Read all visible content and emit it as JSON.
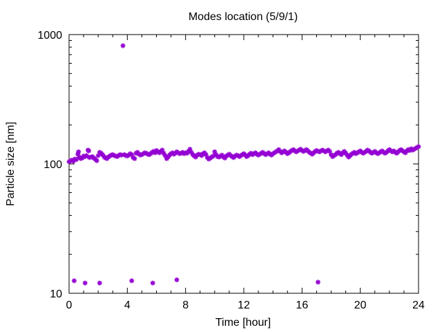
{
  "chart_data": {
    "type": "scatter",
    "title": "Modes location (5/9/1)",
    "xlabel": "Time [hour]",
    "ylabel": "Particle size [nm]",
    "xlim": [
      0,
      24
    ],
    "ylim": [
      10,
      1000
    ],
    "y_scale": "log",
    "x_ticks": [
      0,
      4,
      8,
      12,
      16,
      20,
      24
    ],
    "x_tick_labels": [
      "0",
      "4",
      "8",
      "12",
      "16",
      "20",
      "24"
    ],
    "y_ticks": [
      10,
      100,
      1000
    ],
    "y_tick_labels": [
      "10",
      "100",
      "1000"
    ],
    "grid": false,
    "marker_color": "#9400d3",
    "series": [
      {
        "points": [
          [
            0.0,
            104
          ],
          [
            0.1,
            106
          ],
          [
            0.2,
            107
          ],
          [
            0.3,
            105
          ],
          [
            0.4,
            109
          ],
          [
            0.5,
            108
          ],
          [
            0.6,
            119
          ],
          [
            0.65,
            124
          ],
          [
            0.7,
            113
          ],
          [
            0.8,
            110
          ],
          [
            0.9,
            111
          ],
          [
            1.0,
            115
          ],
          [
            1.1,
            114
          ],
          [
            1.2,
            116
          ],
          [
            1.3,
            128
          ],
          [
            1.35,
            126
          ],
          [
            1.4,
            112
          ],
          [
            1.5,
            113
          ],
          [
            1.6,
            114
          ],
          [
            1.7,
            111
          ],
          [
            1.8,
            109
          ],
          [
            1.9,
            106
          ],
          [
            2.0,
            116
          ],
          [
            2.1,
            123
          ],
          [
            2.2,
            121
          ],
          [
            2.3,
            118
          ],
          [
            2.4,
            114
          ],
          [
            2.5,
            111
          ],
          [
            2.6,
            110
          ],
          [
            2.7,
            113
          ],
          [
            2.8,
            115
          ],
          [
            2.9,
            117
          ],
          [
            3.0,
            118
          ],
          [
            3.1,
            116
          ],
          [
            3.2,
            115
          ],
          [
            3.3,
            114
          ],
          [
            3.4,
            116
          ],
          [
            3.5,
            118
          ],
          [
            3.6,
            117
          ],
          [
            3.8,
            118
          ],
          [
            3.9,
            116
          ],
          [
            4.0,
            115
          ],
          [
            4.1,
            117
          ],
          [
            4.2,
            120
          ],
          [
            4.3,
            118
          ],
          [
            4.4,
            112
          ],
          [
            4.5,
            110
          ],
          [
            4.6,
            121
          ],
          [
            4.7,
            123
          ],
          [
            4.8,
            119
          ],
          [
            4.9,
            117
          ],
          [
            5.0,
            118
          ],
          [
            5.1,
            120
          ],
          [
            5.2,
            122
          ],
          [
            5.3,
            121
          ],
          [
            5.4,
            119
          ],
          [
            5.5,
            118
          ],
          [
            5.6,
            120
          ],
          [
            5.7,
            123
          ],
          [
            5.8,
            125
          ],
          [
            5.9,
            122
          ],
          [
            6.0,
            127
          ],
          [
            6.1,
            124
          ],
          [
            6.2,
            122
          ],
          [
            6.3,
            125
          ],
          [
            6.4,
            128
          ],
          [
            6.5,
            121
          ],
          [
            6.6,
            116
          ],
          [
            6.7,
            110
          ],
          [
            6.8,
            113
          ],
          [
            6.9,
            117
          ],
          [
            7.0,
            120
          ],
          [
            7.1,
            122
          ],
          [
            7.2,
            119
          ],
          [
            7.3,
            121
          ],
          [
            7.4,
            124
          ],
          [
            7.5,
            122
          ],
          [
            7.6,
            120
          ],
          [
            7.7,
            121
          ],
          [
            7.8,
            123
          ],
          [
            7.9,
            120
          ],
          [
            8.0,
            122
          ],
          [
            8.1,
            121
          ],
          [
            8.2,
            125
          ],
          [
            8.3,
            130
          ],
          [
            8.4,
            123
          ],
          [
            8.5,
            118
          ],
          [
            8.6,
            115
          ],
          [
            8.7,
            113
          ],
          [
            8.8,
            117
          ],
          [
            8.9,
            119
          ],
          [
            9.0,
            118
          ],
          [
            9.1,
            116
          ],
          [
            9.2,
            120
          ],
          [
            9.3,
            122
          ],
          [
            9.4,
            118
          ],
          [
            9.5,
            112
          ],
          [
            9.6,
            109
          ],
          [
            9.7,
            111
          ],
          [
            9.8,
            113
          ],
          [
            9.9,
            115
          ],
          [
            10.0,
            124
          ],
          [
            10.1,
            118
          ],
          [
            10.2,
            114
          ],
          [
            10.3,
            113
          ],
          [
            10.4,
            115
          ],
          [
            10.5,
            117
          ],
          [
            10.6,
            113
          ],
          [
            10.7,
            111
          ],
          [
            10.8,
            115
          ],
          [
            10.9,
            117
          ],
          [
            11.0,
            119
          ],
          [
            11.1,
            116
          ],
          [
            11.2,
            114
          ],
          [
            11.3,
            112
          ],
          [
            11.4,
            115
          ],
          [
            11.5,
            117
          ],
          [
            11.6,
            116
          ],
          [
            11.7,
            114
          ],
          [
            11.8,
            116
          ],
          [
            11.9,
            118
          ],
          [
            12.0,
            120
          ],
          [
            12.1,
            117
          ],
          [
            12.2,
            114
          ],
          [
            12.3,
            116
          ],
          [
            12.4,
            119
          ],
          [
            12.5,
            121
          ],
          [
            12.6,
            118
          ],
          [
            12.7,
            120
          ],
          [
            12.8,
            122
          ],
          [
            12.9,
            119
          ],
          [
            13.0,
            117
          ],
          [
            13.1,
            119
          ],
          [
            13.2,
            121
          ],
          [
            13.3,
            123
          ],
          [
            13.4,
            120
          ],
          [
            13.5,
            118
          ],
          [
            13.6,
            120
          ],
          [
            13.7,
            122
          ],
          [
            13.8,
            119
          ],
          [
            13.9,
            117
          ],
          [
            14.0,
            120
          ],
          [
            14.1,
            122
          ],
          [
            14.2,
            124
          ],
          [
            14.3,
            126
          ],
          [
            14.4,
            129
          ],
          [
            14.5,
            125
          ],
          [
            14.6,
            122
          ],
          [
            14.7,
            124
          ],
          [
            14.8,
            126
          ],
          [
            14.9,
            123
          ],
          [
            15.0,
            120
          ],
          [
            15.1,
            122
          ],
          [
            15.2,
            125
          ],
          [
            15.3,
            127
          ],
          [
            15.4,
            129
          ],
          [
            15.5,
            126
          ],
          [
            15.6,
            124
          ],
          [
            15.7,
            126
          ],
          [
            15.8,
            128
          ],
          [
            15.9,
            130
          ],
          [
            16.0,
            127
          ],
          [
            16.1,
            125
          ],
          [
            16.2,
            127
          ],
          [
            16.3,
            129
          ],
          [
            16.4,
            126
          ],
          [
            16.5,
            123
          ],
          [
            16.6,
            121
          ],
          [
            16.7,
            119
          ],
          [
            16.8,
            122
          ],
          [
            16.9,
            125
          ],
          [
            17.0,
            127
          ],
          [
            17.1,
            125
          ],
          [
            17.2,
            124
          ],
          [
            17.3,
            126
          ],
          [
            17.4,
            128
          ],
          [
            17.5,
            126
          ],
          [
            17.6,
            124
          ],
          [
            17.7,
            126
          ],
          [
            17.8,
            128
          ],
          [
            17.9,
            125
          ],
          [
            18.0,
            118
          ],
          [
            18.1,
            114
          ],
          [
            18.2,
            116
          ],
          [
            18.3,
            118
          ],
          [
            18.4,
            121
          ],
          [
            18.5,
            123
          ],
          [
            18.6,
            120
          ],
          [
            18.7,
            118
          ],
          [
            18.8,
            122
          ],
          [
            18.9,
            125
          ],
          [
            19.0,
            121
          ],
          [
            19.1,
            117
          ],
          [
            19.2,
            113
          ],
          [
            19.3,
            116
          ],
          [
            19.4,
            119
          ],
          [
            19.5,
            121
          ],
          [
            19.6,
            123
          ],
          [
            19.7,
            120
          ],
          [
            19.8,
            122
          ],
          [
            19.9,
            124
          ],
          [
            20.0,
            126
          ],
          [
            20.1,
            123
          ],
          [
            20.2,
            121
          ],
          [
            20.3,
            123
          ],
          [
            20.4,
            125
          ],
          [
            20.5,
            128
          ],
          [
            20.6,
            126
          ],
          [
            20.7,
            123
          ],
          [
            20.8,
            121
          ],
          [
            20.9,
            123
          ],
          [
            21.0,
            125
          ],
          [
            21.1,
            122
          ],
          [
            21.2,
            120
          ],
          [
            21.3,
            122
          ],
          [
            21.4,
            124
          ],
          [
            21.5,
            126
          ],
          [
            21.6,
            123
          ],
          [
            21.7,
            121
          ],
          [
            21.8,
            123
          ],
          [
            21.9,
            126
          ],
          [
            22.0,
            129
          ],
          [
            22.1,
            126
          ],
          [
            22.2,
            124
          ],
          [
            22.3,
            126
          ],
          [
            22.4,
            123
          ],
          [
            22.5,
            121
          ],
          [
            22.6,
            124
          ],
          [
            22.7,
            127
          ],
          [
            22.8,
            129
          ],
          [
            22.9,
            126
          ],
          [
            23.0,
            124
          ],
          [
            23.1,
            122
          ],
          [
            23.2,
            126
          ],
          [
            23.3,
            129
          ],
          [
            23.4,
            127
          ],
          [
            23.5,
            131
          ],
          [
            23.6,
            128
          ],
          [
            23.7,
            130
          ],
          [
            23.8,
            132
          ],
          [
            23.9,
            134
          ],
          [
            24.0,
            136
          ]
        ]
      },
      {
        "points": [
          [
            3.7,
            820
          ],
          [
            0.35,
            12.5
          ],
          [
            1.1,
            12.0
          ],
          [
            2.1,
            12.0
          ],
          [
            4.3,
            12.5
          ],
          [
            5.75,
            12.0
          ],
          [
            7.4,
            12.7
          ],
          [
            17.1,
            12.2
          ]
        ]
      }
    ]
  }
}
